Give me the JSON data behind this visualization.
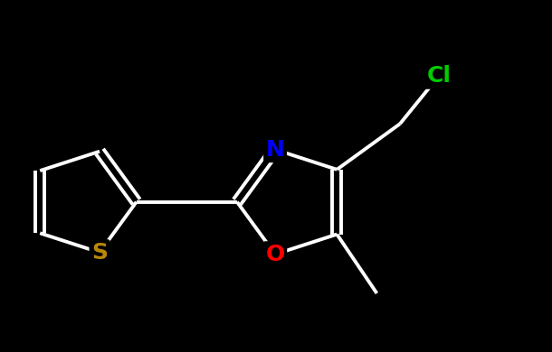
{
  "background_color": "#000000",
  "bond_color": "#ffffff",
  "N_color": "#0000ff",
  "O_color": "#ff0000",
  "S_color": "#b8860b",
  "Cl_color": "#00cc00",
  "bond_width": 2.8,
  "font_size_atom": 18,
  "figsize": [
    6.1,
    3.9
  ],
  "dpi": 100,
  "xlim": [
    1.0,
    9.5
  ],
  "ylim": [
    1.8,
    6.5
  ]
}
